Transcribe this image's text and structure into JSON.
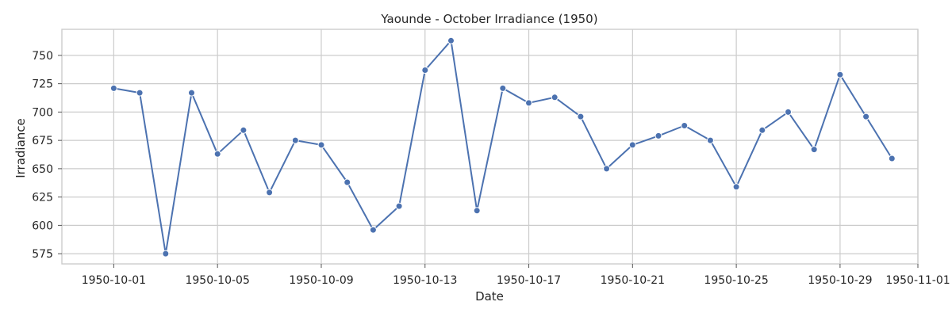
{
  "chart_data": {
    "type": "line",
    "title": "Yaounde - October Irradiance (1950)",
    "xlabel": "Date",
    "ylabel": "Irradiance",
    "x": [
      "1950-10-01",
      "1950-10-02",
      "1950-10-03",
      "1950-10-04",
      "1950-10-05",
      "1950-10-06",
      "1950-10-07",
      "1950-10-08",
      "1950-10-09",
      "1950-10-10",
      "1950-10-11",
      "1950-10-12",
      "1950-10-13",
      "1950-10-14",
      "1950-10-15",
      "1950-10-16",
      "1950-10-17",
      "1950-10-18",
      "1950-10-19",
      "1950-10-20",
      "1950-10-21",
      "1950-10-22",
      "1950-10-23",
      "1950-10-24",
      "1950-10-25",
      "1950-10-26",
      "1950-10-27",
      "1950-10-28",
      "1950-10-29",
      "1950-10-30",
      "1950-10-31"
    ],
    "series": [
      {
        "values": [
          721,
          717,
          575,
          717,
          663,
          684,
          629,
          675,
          671,
          638,
          596,
          617,
          737,
          763,
          613,
          721,
          708,
          713,
          696,
          650,
          671,
          679,
          688,
          675,
          634,
          684,
          700,
          667,
          733,
          696,
          659
        ],
        "color": "#4c72b0"
      }
    ],
    "xlim": [
      "1950-09-29",
      "1950-11-01"
    ],
    "ylim": [
      566,
      773
    ],
    "x_ticks": [
      "1950-10-01",
      "1950-10-05",
      "1950-10-09",
      "1950-10-13",
      "1950-10-17",
      "1950-10-21",
      "1950-10-25",
      "1950-10-29",
      "1950-11-01"
    ],
    "y_ticks": [
      575,
      600,
      625,
      650,
      675,
      700,
      725,
      750
    ],
    "grid": true,
    "legend": "none"
  }
}
